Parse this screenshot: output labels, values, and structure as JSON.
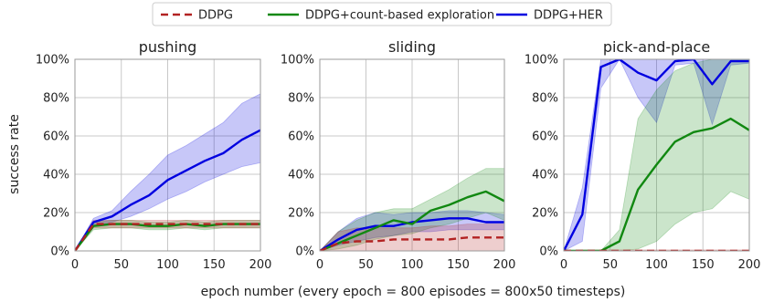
{
  "chart_data": {
    "type": "line",
    "xlabel": "epoch number (every epoch = 800 episodes = 800x50 timesteps)",
    "ylabel": "success rate",
    "xlim": [
      0,
      200
    ],
    "ylim": [
      0,
      1
    ],
    "xticks": [
      0,
      50,
      100,
      150,
      200
    ],
    "yticks": [
      "0%",
      "20%",
      "40%",
      "60%",
      "80%",
      "100%"
    ],
    "grid": true,
    "legend_position": "top-center",
    "legend": [
      {
        "name": "DDPG",
        "color": "#b22222",
        "style": "dashed"
      },
      {
        "name": "DDPG+count-based exploration",
        "color": "#118811",
        "style": "solid"
      },
      {
        "name": "DDPG+HER",
        "color": "#0000e0",
        "style": "solid"
      }
    ],
    "panels": [
      {
        "title": "pushing",
        "series": [
          {
            "name": "DDPG+HER",
            "x": [
              0,
              20,
              40,
              60,
              80,
              100,
              120,
              140,
              160,
              180,
              200
            ],
            "y": [
              0,
              0.15,
              0.18,
              0.24,
              0.29,
              0.37,
              0.42,
              0.47,
              0.51,
              0.58,
              0.63
            ],
            "lower": [
              0,
              0.13,
              0.15,
              0.18,
              0.22,
              0.27,
              0.31,
              0.36,
              0.4,
              0.44,
              0.46
            ],
            "upper": [
              0,
              0.17,
              0.21,
              0.31,
              0.4,
              0.5,
              0.55,
              0.61,
              0.67,
              0.77,
              0.82
            ]
          },
          {
            "name": "DDPG+count-based exploration",
            "x": [
              0,
              20,
              40,
              60,
              80,
              100,
              120,
              140,
              160,
              180,
              200
            ],
            "y": [
              0,
              0.13,
              0.14,
              0.14,
              0.13,
              0.13,
              0.14,
              0.13,
              0.14,
              0.14,
              0.14
            ],
            "lower": [
              0,
              0.11,
              0.12,
              0.12,
              0.11,
              0.11,
              0.12,
              0.11,
              0.12,
              0.12,
              0.12
            ],
            "upper": [
              0,
              0.15,
              0.16,
              0.16,
              0.15,
              0.15,
              0.16,
              0.15,
              0.16,
              0.16,
              0.16
            ]
          },
          {
            "name": "DDPG",
            "x": [
              0,
              20,
              40,
              60,
              80,
              100,
              120,
              140,
              160,
              180,
              200
            ],
            "y": [
              0,
              0.14,
              0.14,
              0.14,
              0.14,
              0.14,
              0.14,
              0.14,
              0.14,
              0.14,
              0.14
            ],
            "lower": [
              0,
              0.12,
              0.12,
              0.12,
              0.12,
              0.12,
              0.12,
              0.12,
              0.12,
              0.12,
              0.12
            ],
            "upper": [
              0,
              0.16,
              0.16,
              0.16,
              0.16,
              0.16,
              0.16,
              0.16,
              0.16,
              0.16,
              0.16
            ]
          }
        ]
      },
      {
        "title": "sliding",
        "series": [
          {
            "name": "DDPG+HER",
            "x": [
              0,
              20,
              40,
              60,
              80,
              100,
              120,
              140,
              160,
              180,
              200
            ],
            "y": [
              0,
              0.06,
              0.11,
              0.13,
              0.13,
              0.15,
              0.16,
              0.17,
              0.17,
              0.15,
              0.15
            ],
            "lower": [
              0,
              0.03,
              0.05,
              0.07,
              0.08,
              0.1,
              0.1,
              0.11,
              0.11,
              0.11,
              0.11
            ],
            "upper": [
              0,
              0.1,
              0.17,
              0.2,
              0.19,
              0.2,
              0.2,
              0.21,
              0.21,
              0.2,
              0.19
            ]
          },
          {
            "name": "DDPG+count-based exploration",
            "x": [
              0,
              20,
              40,
              60,
              80,
              100,
              120,
              140,
              160,
              180,
              200
            ],
            "y": [
              0,
              0.04,
              0.08,
              0.12,
              0.16,
              0.14,
              0.21,
              0.24,
              0.28,
              0.31,
              0.26
            ],
            "lower": [
              0,
              0.01,
              0.03,
              0.06,
              0.08,
              0.09,
              0.12,
              0.14,
              0.17,
              0.2,
              0.16
            ],
            "upper": [
              0,
              0.1,
              0.16,
              0.2,
              0.22,
              0.22,
              0.27,
              0.32,
              0.38,
              0.43,
              0.43
            ]
          },
          {
            "name": "DDPG",
            "x": [
              0,
              20,
              40,
              60,
              80,
              100,
              120,
              140,
              160,
              180,
              200
            ],
            "y": [
              0,
              0.04,
              0.05,
              0.05,
              0.06,
              0.06,
              0.06,
              0.06,
              0.07,
              0.07,
              0.07
            ],
            "lower": [
              0,
              0.0,
              0.0,
              0.0,
              0.0,
              0.0,
              0.0,
              0.0,
              0.0,
              0.0,
              0.0
            ],
            "upper": [
              0,
              0.1,
              0.12,
              0.12,
              0.12,
              0.12,
              0.13,
              0.13,
              0.14,
              0.14,
              0.14
            ]
          }
        ]
      },
      {
        "title": "pick-and-place",
        "series": [
          {
            "name": "DDPG+HER",
            "x": [
              0,
              20,
              40,
              60,
              80,
              100,
              120,
              140,
              160,
              180,
              200
            ],
            "y": [
              0,
              0.19,
              0.96,
              1.0,
              0.93,
              0.89,
              0.99,
              1.0,
              0.87,
              0.99,
              0.99
            ],
            "lower": [
              0,
              0.05,
              0.85,
              1.0,
              0.8,
              0.67,
              0.97,
              0.98,
              0.66,
              0.97,
              0.98
            ],
            "upper": [
              0,
              0.33,
              1.0,
              1.0,
              1.0,
              1.0,
              1.0,
              1.0,
              1.0,
              1.0,
              1.0
            ]
          },
          {
            "name": "DDPG+count-based exploration",
            "x": [
              0,
              20,
              40,
              60,
              80,
              100,
              120,
              140,
              160,
              180,
              200
            ],
            "y": [
              0,
              0.0,
              0.0,
              0.05,
              0.32,
              0.45,
              0.57,
              0.62,
              0.64,
              0.69,
              0.63
            ],
            "lower": [
              0,
              0.0,
              0.0,
              0.0,
              0.01,
              0.05,
              0.14,
              0.2,
              0.22,
              0.31,
              0.27
            ],
            "upper": [
              0,
              0.0,
              0.0,
              0.11,
              0.69,
              0.84,
              0.94,
              0.98,
              1.0,
              1.0,
              1.0
            ]
          },
          {
            "name": "DDPG",
            "x": [
              0,
              20,
              40,
              60,
              80,
              100,
              120,
              140,
              160,
              180,
              200
            ],
            "y": [
              0,
              0,
              0,
              0,
              0,
              0,
              0,
              0,
              0,
              0,
              0
            ],
            "lower": [
              0,
              0,
              0,
              0,
              0,
              0,
              0,
              0,
              0,
              0,
              0
            ],
            "upper": [
              0,
              0.005,
              0.005,
              0.005,
              0.005,
              0.005,
              0.005,
              0.005,
              0.005,
              0.005,
              0.005
            ]
          }
        ]
      }
    ]
  }
}
